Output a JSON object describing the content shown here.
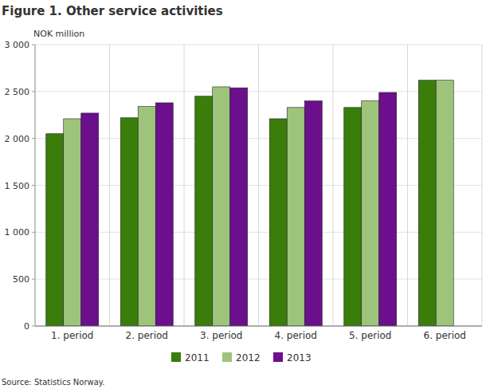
{
  "chart_data": {
    "type": "bar",
    "title": "Figure 1. Other service activities",
    "y_label": "NOK million",
    "source": "Source: Statistics Norway.",
    "categories": [
      "1. period",
      "2. period",
      "3. period",
      "4. period",
      "5. period",
      "6. period"
    ],
    "series": [
      {
        "name": "2011",
        "color": "#3a7d0b",
        "values": [
          2050,
          2220,
          2450,
          2210,
          2330,
          2620
        ]
      },
      {
        "name": "2012",
        "color": "#9ec47c",
        "values": [
          2210,
          2340,
          2550,
          2330,
          2400,
          2620
        ]
      },
      {
        "name": "2013",
        "color": "#6b0f8c",
        "values": [
          2270,
          2380,
          2540,
          2400,
          2490,
          null
        ]
      }
    ],
    "ylim": [
      0,
      3000
    ],
    "yticks": [
      0,
      500,
      {
        "value": 1000,
        "label": "1 000"
      },
      {
        "value": 1500,
        "label": "1 500"
      },
      {
        "value": 2000,
        "label": "2 000"
      },
      {
        "value": 2500,
        "label": "2 500"
      },
      {
        "value": 3000,
        "label": "3 000"
      }
    ],
    "grid": true,
    "legend": "bottom"
  }
}
